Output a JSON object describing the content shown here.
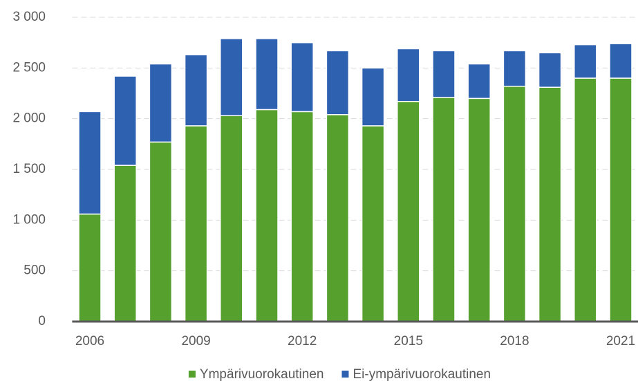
{
  "chart_data": {
    "type": "stacked_bar",
    "categories": [
      "2006",
      null,
      null,
      "2009",
      null,
      null,
      "2012",
      null,
      null,
      "2015",
      null,
      null,
      "2018",
      null,
      null,
      "2021"
    ],
    "series": [
      {
        "name": "Ympärivuorokautinen",
        "color": "#56a02e",
        "values": [
          1060,
          1540,
          1770,
          1930,
          2030,
          2090,
          2070,
          2040,
          1930,
          2170,
          2210,
          2200,
          2320,
          2310,
          2400,
          2400
        ]
      },
      {
        "name": "Ei-ympärivuorokautinen",
        "color": "#2e62b0",
        "values": [
          1010,
          880,
          770,
          700,
          760,
          700,
          680,
          630,
          570,
          520,
          460,
          340,
          350,
          340,
          330,
          340
        ]
      }
    ],
    "ylim": [
      0,
      3000
    ],
    "yticks": [
      0,
      500,
      {
        "value": 1000,
        "label": "1 000"
      },
      {
        "value": 1500,
        "label": "1 500"
      },
      {
        "value": 2000,
        "label": "2 000"
      },
      {
        "value": 2500,
        "label": "2 500"
      },
      {
        "value": 3000,
        "label": "3 000"
      }
    ],
    "grid": true
  }
}
